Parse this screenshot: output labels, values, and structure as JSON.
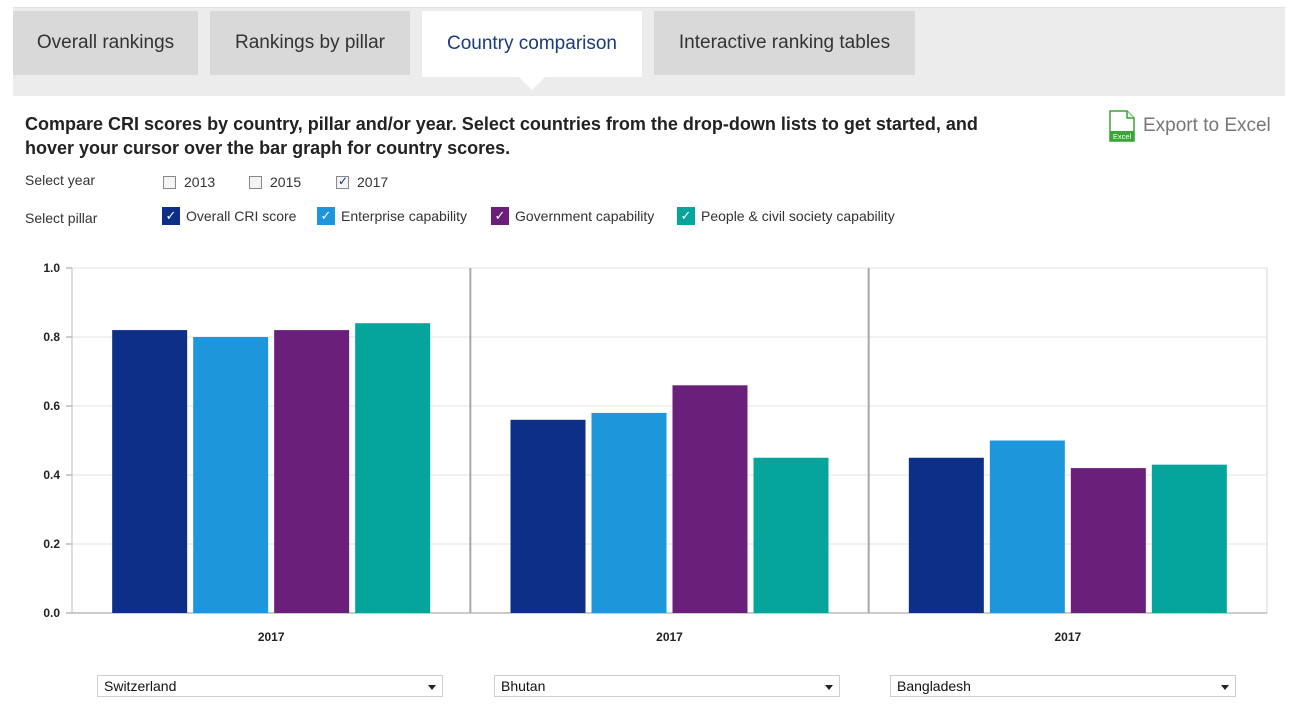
{
  "tabs": [
    {
      "label": "Overall rankings",
      "active": false
    },
    {
      "label": "Rankings by pillar",
      "active": false
    },
    {
      "label": "Country comparison",
      "active": true
    },
    {
      "label": "Interactive ranking tables",
      "active": false
    }
  ],
  "instructions": "Compare CRI scores by country, pillar and/or year. Select countries from the drop-down lists to get started, and hover your cursor over the bar graph for country scores.",
  "export": {
    "label": "Export to Excel",
    "icon": "excel-file-icon",
    "icon_text": "Excel"
  },
  "year_filter": {
    "label": "Select year",
    "options": [
      {
        "label": "2013",
        "checked": false
      },
      {
        "label": "2015",
        "checked": false
      },
      {
        "label": "2017",
        "checked": true
      }
    ]
  },
  "pillar_filter": {
    "label": "Select pillar",
    "options": [
      {
        "label": "Overall CRI score",
        "checked": true,
        "color": "#0d2f87"
      },
      {
        "label": "Enterprise capability",
        "checked": true,
        "color": "#1e96dc"
      },
      {
        "label": "Government capability",
        "checked": true,
        "color": "#6a1f7a"
      },
      {
        "label": "People & civil society capability",
        "checked": true,
        "color": "#05a59c"
      }
    ]
  },
  "country_selects": [
    {
      "value": "Switzerland"
    },
    {
      "value": "Bhutan"
    },
    {
      "value": "Bangladesh"
    }
  ],
  "chart_data": {
    "type": "bar",
    "ylim": [
      0,
      1.0
    ],
    "yticks": [
      "0.0",
      "0.2",
      "0.4",
      "0.6",
      "0.8",
      "1.0"
    ],
    "grid": true,
    "groups": [
      {
        "country": "Switzerland",
        "year_label": "2017",
        "values": [
          0.82,
          0.8,
          0.82,
          0.84
        ]
      },
      {
        "country": "Bhutan",
        "year_label": "2017",
        "values": [
          0.56,
          0.58,
          0.66,
          0.45
        ]
      },
      {
        "country": "Bangladesh",
        "year_label": "2017",
        "values": [
          0.45,
          0.5,
          0.42,
          0.43
        ]
      }
    ],
    "series": [
      "Overall CRI score",
      "Enterprise capability",
      "Government capability",
      "People & civil society capability"
    ],
    "colors": [
      "#0d2f87",
      "#1e96dc",
      "#6a1f7a",
      "#05a59c"
    ]
  }
}
